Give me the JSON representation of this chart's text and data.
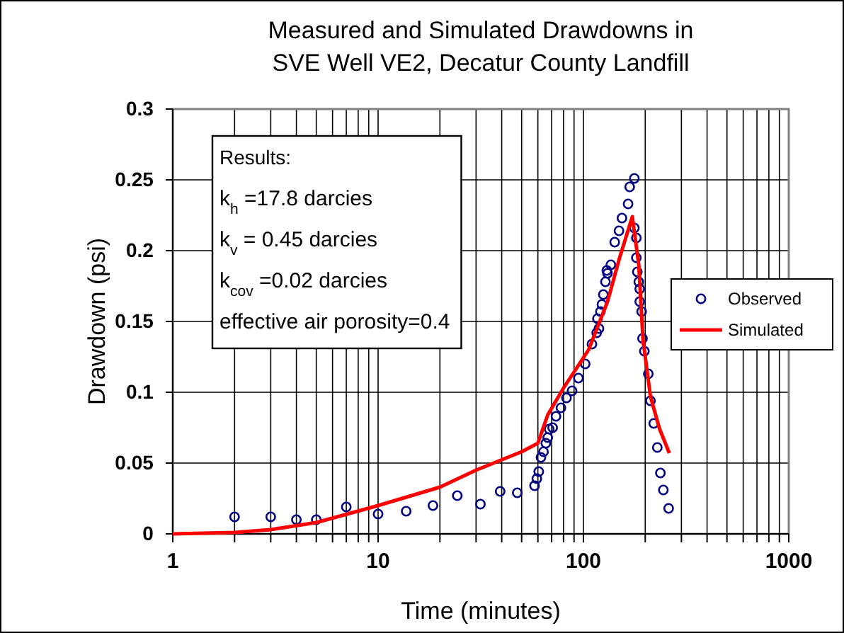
{
  "chart_data": {
    "type": "scatter",
    "title": "Measured and Simulated Drawdowns in SVE Well VE2, Decatur County Landfill",
    "xlabel": "Time (minutes)",
    "ylabel": "Drawdown (psi)",
    "log": "x",
    "grid": true,
    "legend": "right",
    "marker": "circle",
    "xlim": [
      1,
      1000
    ],
    "ylim": [
      0,
      0.3
    ],
    "xticks": [
      1,
      {
        "value": 2,
        "label": null
      },
      {
        "value": 3,
        "label": null
      },
      {
        "value": 4,
        "label": null
      },
      {
        "value": 5,
        "label": null
      },
      {
        "value": 6,
        "label": null
      },
      {
        "value": 7,
        "label": null
      },
      {
        "value": 8,
        "label": null
      },
      {
        "value": 9,
        "label": null
      },
      10,
      {
        "value": 20,
        "label": null
      },
      {
        "value": 30,
        "label": null
      },
      {
        "value": 40,
        "label": null
      },
      {
        "value": 50,
        "label": null
      },
      {
        "value": 60,
        "label": null
      },
      {
        "value": 70,
        "label": null
      },
      {
        "value": 80,
        "label": null
      },
      {
        "value": 90,
        "label": null
      },
      100,
      {
        "value": 200,
        "label": null
      },
      {
        "value": 300,
        "label": null
      },
      {
        "value": 400,
        "label": null
      },
      {
        "value": 500,
        "label": null
      },
      {
        "value": 600,
        "label": null
      },
      {
        "value": 700,
        "label": null
      },
      {
        "value": 800,
        "label": null
      },
      {
        "value": 900,
        "label": null
      },
      1000
    ],
    "yticks": [
      0,
      0.05,
      0.1,
      0.15,
      0.2,
      0.25,
      0.3
    ],
    "annotations": [
      "Results:",
      "k$_{h}$ =17.8 darcies",
      "k$_{v}$ = 0.45 darcies",
      "k$_{cov}$ =0.02 darcies",
      "effective air porosity=0.4"
    ],
    "series": [
      {
        "name": "Observed",
        "color": "#000080",
        "x": [
          2,
          3,
          4,
          5,
          7,
          10,
          13.7,
          18.5,
          24.3,
          31.5,
          39.3,
          47.6,
          57.8,
          59.3,
          60.6,
          62.1,
          63.9,
          65.6,
          67,
          68.1,
          70.8,
          73.5,
          77.7,
          82.7,
          88,
          94.5,
          102,
          110,
          116,
          119,
          117,
          121,
          123,
          125,
          128,
          130,
          131,
          136,
          142,
          149,
          154,
          165,
          168,
          177,
          177,
          181,
          181,
          183,
          186,
          188,
          188,
          192,
          194,
          198,
          207,
          212,
          220,
          229,
          237,
          245,
          260
        ],
        "values": [
          0.012,
          0.012,
          0.01,
          0.01,
          0.019,
          0.014,
          0.016,
          0.02,
          0.027,
          0.021,
          0.03,
          0.029,
          0.034,
          0.039,
          0.044,
          0.054,
          0.058,
          0.064,
          0.068,
          0.074,
          0.075,
          0.083,
          0.089,
          0.096,
          0.101,
          0.11,
          0.12,
          0.134,
          0.142,
          0.145,
          0.152,
          0.157,
          0.162,
          0.169,
          0.178,
          0.186,
          0.184,
          0.19,
          0.206,
          0.214,
          0.223,
          0.233,
          0.245,
          0.251,
          0.216,
          0.209,
          0.195,
          0.185,
          0.178,
          0.173,
          0.164,
          0.157,
          0.138,
          0.129,
          0.113,
          0.094,
          0.078,
          0.061,
          0.043,
          0.031,
          0.018
        ]
      },
      {
        "name": "Simulated",
        "type": "line",
        "color": "#ff0000",
        "marker": "none",
        "x": [
          1,
          2,
          3,
          5,
          10,
          20,
          30,
          50,
          60,
          62,
          67,
          80,
          106,
          131,
          150,
          173,
          186,
          195,
          212,
          235,
          262
        ],
        "values": [
          0,
          0.001,
          0.003,
          0.008,
          0.02,
          0.033,
          0.045,
          0.058,
          0.064,
          0.07,
          0.084,
          0.103,
          0.13,
          0.164,
          0.195,
          0.224,
          0.19,
          0.137,
          0.097,
          0.074,
          0.057
        ]
      }
    ]
  }
}
